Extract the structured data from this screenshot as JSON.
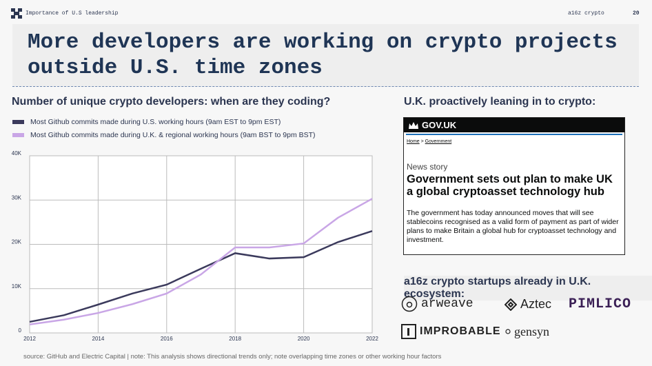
{
  "header": {
    "section": "Importance of U.S leadership",
    "brand": "a16z crypto",
    "page": "20"
  },
  "title": "More developers are working on crypto projects outside U.S. time zones",
  "chart_data": {
    "type": "line",
    "title": "Number of unique crypto developers: when are they coding?",
    "x": [
      2012,
      2013,
      2014,
      2015,
      2016,
      2017,
      2018,
      2019,
      2020,
      2021,
      2022
    ],
    "series": [
      {
        "name": "Most Github commits made during U.S. working hours (9am EST to 9pm EST)",
        "color": "#3b3a5c",
        "values": [
          2500,
          4000,
          6400,
          8900,
          10900,
          14500,
          18000,
          16800,
          17100,
          20500,
          23000
        ]
      },
      {
        "name": "Most Github commits made during U.K. & regional working hours (9am BST to 9pm BST)",
        "color": "#c9a6e6",
        "values": [
          1900,
          3000,
          4500,
          6500,
          8900,
          13200,
          19300,
          19300,
          20200,
          26000,
          30300
        ]
      }
    ],
    "xlim": [
      2012,
      2022
    ],
    "xticks": [
      2012,
      2014,
      2016,
      2018,
      2020,
      2022
    ],
    "ylim": [
      0,
      40000
    ],
    "yticks": [
      0,
      {
        "value": 10000,
        "label": "10K"
      },
      {
        "value": 20000,
        "label": "20K"
      },
      {
        "value": 30000,
        "label": "30K"
      },
      {
        "value": 40000,
        "label": "40K"
      }
    ],
    "grid": true,
    "source": "source: GitHub and Electric Capital | note: This analysis shows directional trends only; note overlapping time zones or other working hour factors"
  },
  "right": {
    "heading": "U.K. proactively leaning in to crypto:",
    "gov": {
      "brand": "GOV.UK",
      "breadcrumb": [
        "Home",
        "Government"
      ],
      "kind": "News story",
      "headline": "Government sets out plan to make UK a global cryptoasset technology hub",
      "body": "The government has today announced moves that will see stablecoins recognised as a valid form of payment as part of wider plans to make Britain a global hub for cryptoasset technology and investment."
    },
    "ecosystem_heading": "a16z crypto startups already in U.K. ecosystem:",
    "startups": [
      "arweave",
      "Aztec",
      "PIMLICO",
      "IMPROBABLE",
      "gensyn"
    ]
  }
}
